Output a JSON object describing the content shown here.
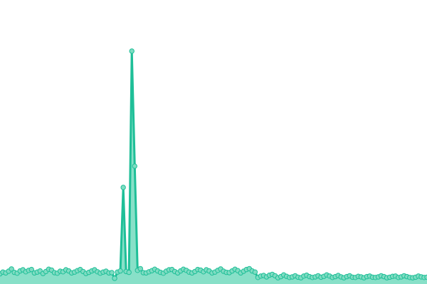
{
  "chart_data": {
    "type": "area",
    "title": "",
    "xlabel": "",
    "ylabel": "",
    "ylim": [
      0,
      100
    ],
    "grid": false,
    "axes_visible": false,
    "markers": true,
    "colors": {
      "line": "#1fbf98",
      "fill": "#88e0c8",
      "marker_fill": "#7fdcc2",
      "marker_stroke": "#1fbf98"
    },
    "values": [
      3.6,
      4.2,
      3.9,
      4.5,
      5.3,
      4.1,
      3.8,
      4.6,
      5.0,
      4.3,
      4.8,
      5.1,
      3.9,
      4.2,
      4.6,
      3.7,
      4.4,
      5.2,
      4.9,
      4.0,
      3.8,
      4.5,
      4.3,
      5.0,
      4.6,
      3.9,
      4.2,
      4.7,
      5.1,
      4.4,
      3.7,
      4.1,
      4.6,
      5.0,
      4.3,
      3.8,
      4.2,
      4.5,
      3.9,
      4.0,
      2.0,
      4.2,
      4.6,
      34,
      4.4,
      4.1,
      82,
      41.5,
      4.8,
      5.4,
      4.0,
      3.9,
      4.3,
      4.7,
      5.2,
      4.6,
      4.1,
      3.8,
      4.5,
      5.0,
      5.1,
      4.4,
      3.9,
      4.6,
      5.2,
      4.8,
      4.2,
      3.9,
      4.4,
      5.1,
      4.9,
      4.3,
      5.0,
      4.6,
      3.9,
      4.2,
      4.8,
      5.3,
      4.5,
      4.1,
      4.0,
      4.6,
      5.2,
      4.7,
      3.9,
      4.5,
      5.1,
      5.4,
      4.6,
      4.2,
      2.3,
      2.8,
      3.0,
      2.5,
      3.1,
      3.4,
      2.9,
      2.2,
      2.6,
      3.2,
      2.7,
      2.3,
      2.5,
      2.9,
      2.4,
      2.2,
      2.8,
      3.1,
      2.6,
      2.3,
      2.5,
      2.9,
      2.4,
      2.7,
      3.2,
      2.8,
      2.3,
      2.6,
      3.0,
      2.5,
      2.2,
      2.6,
      2.9,
      2.4,
      2.3,
      2.7,
      2.5,
      2.2,
      2.6,
      2.8,
      2.4,
      2.3,
      2.5,
      2.9,
      2.6,
      2.2,
      2.4,
      2.7,
      2.8,
      2.3,
      2.5,
      2.9,
      2.6,
      2.3,
      2.2,
      2.4,
      2.8,
      2.5,
      2.3,
      2.4
    ]
  }
}
